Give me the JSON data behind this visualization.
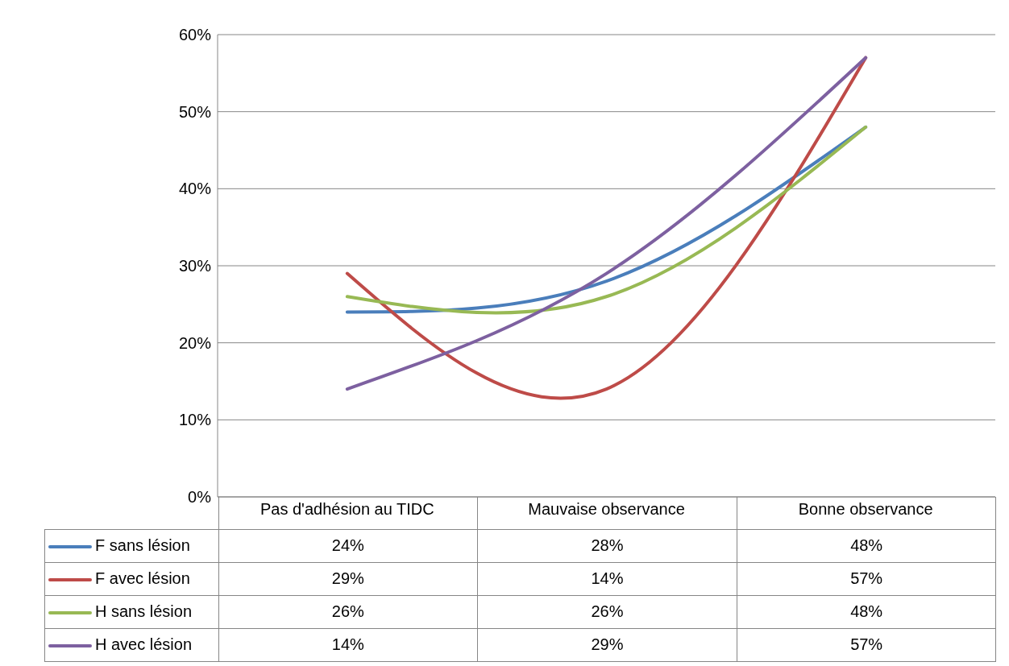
{
  "chart_data": {
    "type": "line",
    "categories": [
      "Pas d'adhésion au TIDC",
      "Mauvaise observance",
      "Bonne observance"
    ],
    "series": [
      {
        "name": "F sans lésion",
        "color": "#4a7ebb",
        "values": [
          24,
          28,
          48
        ],
        "value_labels": [
          "24%",
          "28%",
          "48%"
        ]
      },
      {
        "name": "F avec lésion",
        "color": "#be4b48",
        "values": [
          29,
          14,
          57
        ],
        "value_labels": [
          "29%",
          "14%",
          "57%"
        ]
      },
      {
        "name": "H sans lésion",
        "color": "#98b954",
        "values": [
          26,
          26,
          48
        ],
        "value_labels": [
          "26%",
          "26%",
          "48%"
        ]
      },
      {
        "name": "H avec lésion",
        "color": "#7d60a0",
        "values": [
          14,
          29,
          57
        ],
        "value_labels": [
          "14%",
          "29%",
          "57%"
        ]
      }
    ],
    "ylim": [
      0,
      60
    ],
    "yticks": [
      {
        "value": 0,
        "label": "0%"
      },
      {
        "value": 10,
        "label": "10%"
      },
      {
        "value": 20,
        "label": "20%"
      },
      {
        "value": 30,
        "label": "30%"
      },
      {
        "value": 40,
        "label": "40%"
      },
      {
        "value": 50,
        "label": "50%"
      },
      {
        "value": 60,
        "label": "60%"
      }
    ],
    "grid": "y",
    "legend": "bottom",
    "marker": "none",
    "line_style": "solid"
  }
}
